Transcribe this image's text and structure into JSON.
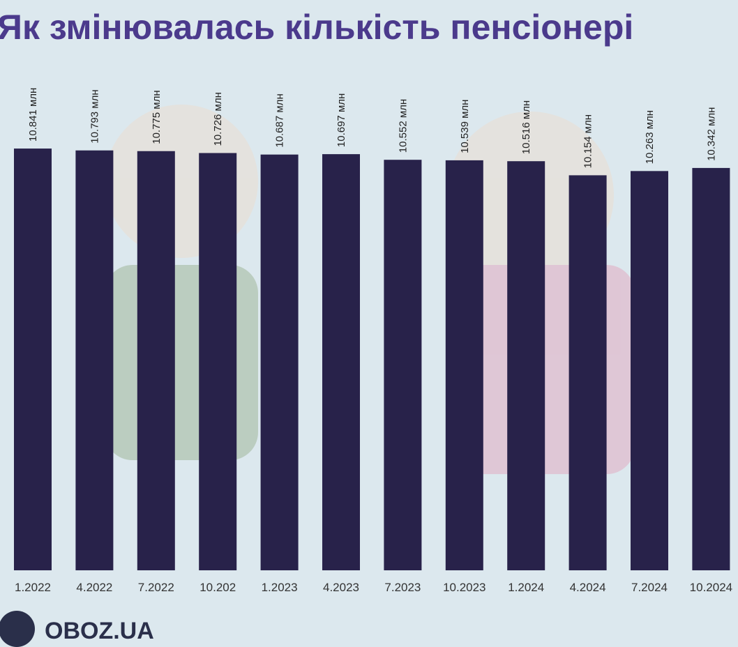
{
  "chart_data": {
    "type": "bar",
    "title": "Як змінювалась кількість пенсіонері",
    "categories": [
      "1.2022",
      "4.2022",
      "7.2022",
      "10.202",
      "1.2023",
      "4.2023",
      "7.2023",
      "10.2023",
      "1.2024",
      "4.2024",
      "7.2024",
      "10.2024"
    ],
    "values": [
      10.841,
      10.793,
      10.775,
      10.726,
      10.687,
      10.697,
      10.552,
      10.539,
      10.516,
      10.154,
      10.263,
      10.342
    ],
    "value_labels": [
      "10.841 млн",
      "10.793 млн",
      "10.775 млн",
      "10.726 млн",
      "10.687 млн",
      "10.697 млн",
      "10.552 млн",
      "10.539 млн",
      "10.516 млн",
      "10.154 млн",
      "10.263 млн",
      "10.342 млн"
    ],
    "color": "#28224a"
  },
  "logo": "OBOZ.UA"
}
